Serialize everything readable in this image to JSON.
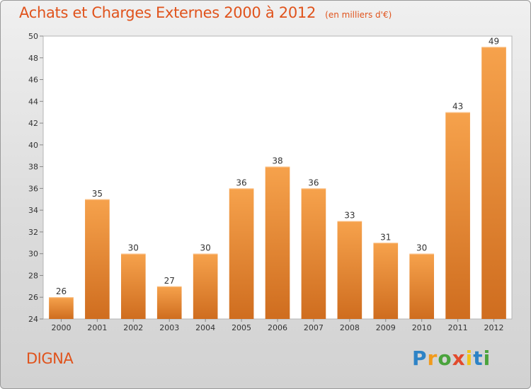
{
  "chart_data": {
    "type": "bar",
    "title": "Achats et Charges Externes 2000 à 2012",
    "subtitle": "(en milliers d'€)",
    "categories": [
      "2000",
      "2001",
      "2002",
      "2003",
      "2004",
      "2005",
      "2006",
      "2007",
      "2008",
      "2009",
      "2010",
      "2011",
      "2012"
    ],
    "values": [
      26,
      35,
      30,
      27,
      30,
      36,
      38,
      36,
      33,
      31,
      30,
      43,
      49
    ],
    "ylim": [
      24,
      50
    ],
    "yticks": [
      24,
      26,
      28,
      30,
      32,
      34,
      36,
      38,
      40,
      42,
      44,
      46,
      48,
      50
    ],
    "grid": false,
    "bar_color_light": "#f6a24c",
    "bar_color_dark": "#cf6d1f"
  },
  "footer": {
    "commune": "DIGNA"
  },
  "brand": {
    "letters": [
      "P",
      "r",
      "o",
      "x",
      "i",
      "t",
      "i"
    ],
    "colors": [
      "#2d83c6",
      "#f19a1c",
      "#4aa33c",
      "#e24a2c",
      "#f0c419",
      "#2d83c6",
      "#4aa33c"
    ]
  }
}
